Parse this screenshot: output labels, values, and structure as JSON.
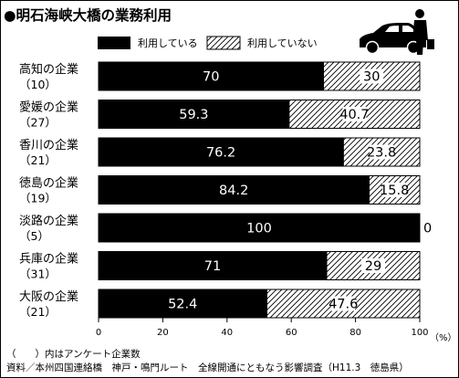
{
  "chart_data": {
    "type": "bar",
    "stacked": true,
    "orientation": "horizontal",
    "title": "●明石海峡大橋の業務利用",
    "categories": [
      "高知の企業",
      "愛媛の企業",
      "香川の企業",
      "徳島の企業",
      "淡路の企業",
      "兵庫の企業",
      "大阪の企業"
    ],
    "counts": [
      "（10）",
      "（27）",
      "（21）",
      "（19）",
      "（5）",
      "（31）",
      "（21）"
    ],
    "series": [
      {
        "name": "利用している",
        "values": [
          70,
          59.3,
          76.2,
          84.2,
          100,
          71,
          52.4
        ],
        "color": "#000000",
        "label_color": "#ffffff"
      },
      {
        "name": "利用していない",
        "values": [
          30,
          40.7,
          23.8,
          15.8,
          0,
          29,
          47.6
        ],
        "color": "#ffffff",
        "pattern": "diagonal-hatch",
        "label_color": "#000000"
      }
    ],
    "value_labels": [
      [
        "70",
        "59.3",
        "76.2",
        "84.2",
        "100",
        "71",
        "52.4"
      ],
      [
        "30",
        "40.7",
        "23.8",
        "15.8",
        "0",
        "29",
        "47.6"
      ]
    ],
    "xlim": [
      0,
      100
    ],
    "xticks": [
      "0",
      "20",
      "40",
      "60",
      "80",
      "100"
    ],
    "xunit": "（%）",
    "legend": "top",
    "grid": false,
    "notes": [
      "（　　）内はアンケート企業数",
      "資料／本州四国連絡橋　神戸・鳴門ルート　全線開通にともなう影響調査（H11.3　徳島県）"
    ],
    "icon": "car-and-person-icon"
  }
}
